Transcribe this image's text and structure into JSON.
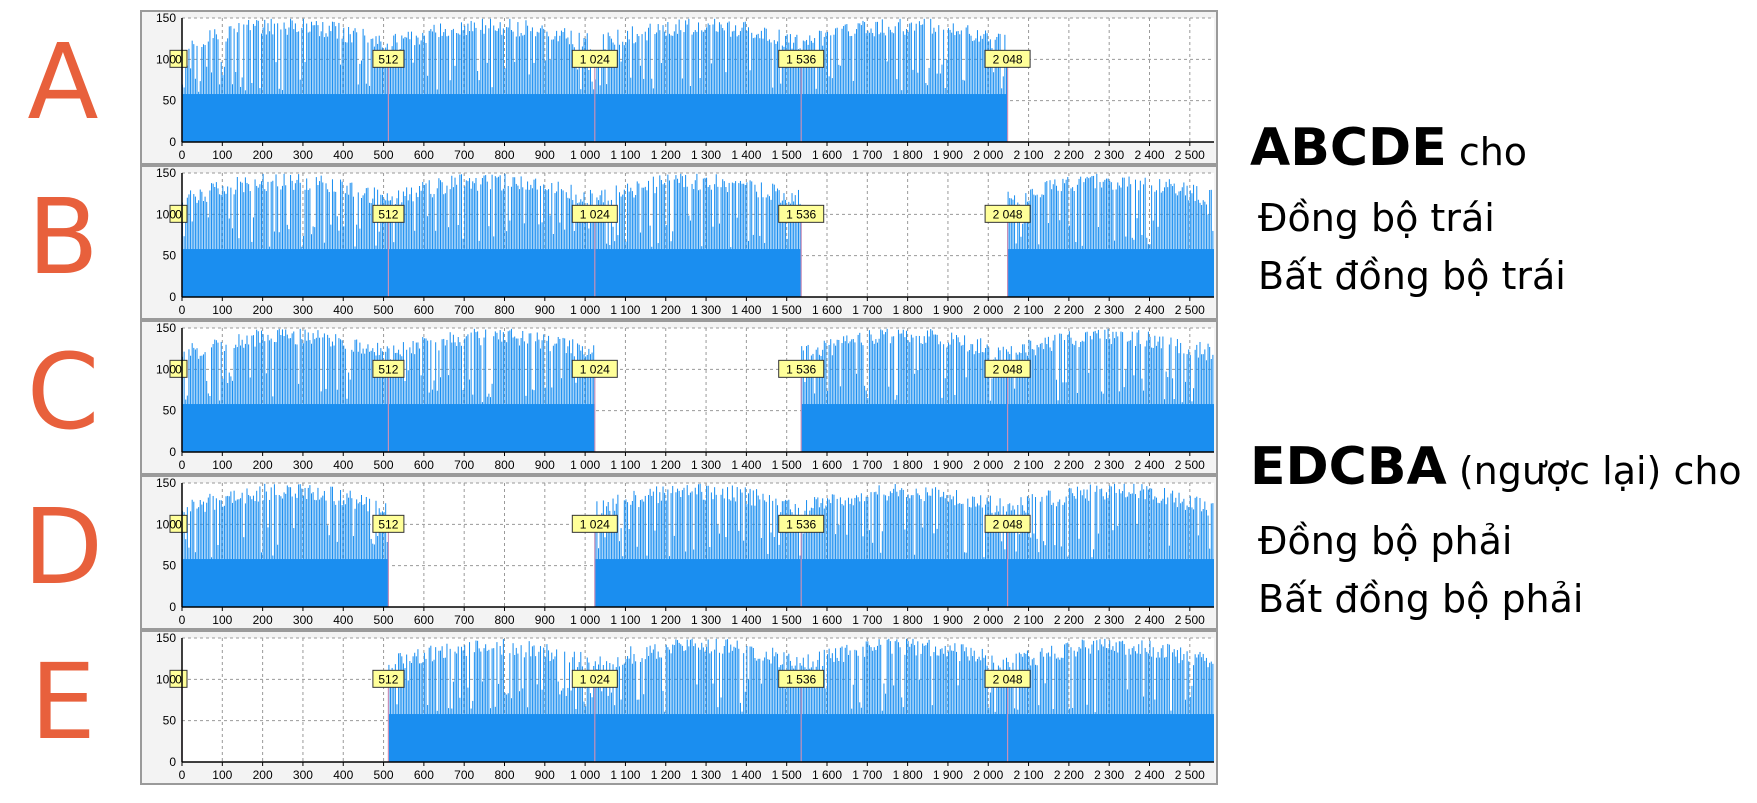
{
  "rows": [
    "A",
    "B",
    "C",
    "D",
    "E"
  ],
  "chart_data": [
    {
      "type": "bar",
      "row": "A",
      "y_ticks": [
        0,
        50,
        100,
        150
      ],
      "ylim": [
        0,
        150
      ],
      "x_ticks": [
        0,
        100,
        200,
        300,
        400,
        500,
        600,
        700,
        800,
        900,
        1000,
        1100,
        1200,
        1300,
        1400,
        1500,
        1600,
        1700,
        1800,
        1900,
        2000,
        2100,
        2200,
        2300,
        2400,
        2500
      ],
      "x_tick_labels": [
        "0",
        "100",
        "200",
        "300",
        "400",
        "500",
        "600",
        "700",
        "800",
        "900",
        "1 000",
        "1 100",
        "1 200",
        "1 300",
        "1 400",
        "1 500",
        "1 600",
        "1 700",
        "1 800",
        "1 900",
        "2 000",
        "2 100",
        "2 200",
        "2 300",
        "2 400",
        "2 500"
      ],
      "xlim": [
        0,
        2560
      ],
      "markers": [
        0,
        512,
        1024,
        1536,
        2048
      ],
      "marker_labels": [
        "0",
        "512",
        "1 024",
        "1 536",
        "2 048"
      ],
      "filled_ranges": [
        [
          0,
          2048
        ]
      ],
      "grid": true,
      "color": "#1a8ef0"
    },
    {
      "type": "bar",
      "row": "B",
      "y_ticks": [
        0,
        50,
        100,
        150
      ],
      "ylim": [
        0,
        150
      ],
      "x_ticks": [
        0,
        100,
        200,
        300,
        400,
        500,
        600,
        700,
        800,
        900,
        1000,
        1100,
        1200,
        1300,
        1400,
        1500,
        1600,
        1700,
        1800,
        1900,
        2000,
        2100,
        2200,
        2300,
        2400,
        2500
      ],
      "x_tick_labels": [
        "0",
        "100",
        "200",
        "300",
        "400",
        "500",
        "600",
        "700",
        "800",
        "900",
        "1 000",
        "1 100",
        "1 200",
        "1 300",
        "1 400",
        "1 500",
        "1 600",
        "1 700",
        "1 800",
        "1 900",
        "2 000",
        "2 100",
        "2 200",
        "2 300",
        "2 400",
        "2 500"
      ],
      "xlim": [
        0,
        2560
      ],
      "markers": [
        0,
        512,
        1024,
        1536,
        2048
      ],
      "marker_labels": [
        "0",
        "512",
        "1 024",
        "1 536",
        "2 048"
      ],
      "filled_ranges": [
        [
          0,
          1536
        ],
        [
          2048,
          2560
        ]
      ],
      "grid": true,
      "color": "#1a8ef0"
    },
    {
      "type": "bar",
      "row": "C",
      "y_ticks": [
        0,
        50,
        100,
        150
      ],
      "ylim": [
        0,
        150
      ],
      "x_ticks": [
        0,
        100,
        200,
        300,
        400,
        500,
        600,
        700,
        800,
        900,
        1000,
        1100,
        1200,
        1300,
        1400,
        1500,
        1600,
        1700,
        1800,
        1900,
        2000,
        2100,
        2200,
        2300,
        2400,
        2500
      ],
      "x_tick_labels": [
        "0",
        "100",
        "200",
        "300",
        "400",
        "500",
        "600",
        "700",
        "800",
        "900",
        "1 000",
        "1 100",
        "1 200",
        "1 300",
        "1 400",
        "1 500",
        "1 600",
        "1 700",
        "1 800",
        "1 900",
        "2 000",
        "2 100",
        "2 200",
        "2 300",
        "2 400",
        "2 500"
      ],
      "xlim": [
        0,
        2560
      ],
      "markers": [
        0,
        512,
        1024,
        1536,
        2048
      ],
      "marker_labels": [
        "0",
        "512",
        "1 024",
        "1 536",
        "2 048"
      ],
      "filled_ranges": [
        [
          0,
          1024
        ],
        [
          1536,
          2560
        ]
      ],
      "grid": true,
      "color": "#1a8ef0"
    },
    {
      "type": "bar",
      "row": "D",
      "y_ticks": [
        0,
        50,
        100,
        150
      ],
      "ylim": [
        0,
        150
      ],
      "x_ticks": [
        0,
        100,
        200,
        300,
        400,
        500,
        600,
        700,
        800,
        900,
        1000,
        1100,
        1200,
        1300,
        1400,
        1500,
        1600,
        1700,
        1800,
        1900,
        2000,
        2100,
        2200,
        2300,
        2400,
        2500
      ],
      "x_tick_labels": [
        "0",
        "100",
        "200",
        "300",
        "400",
        "500",
        "600",
        "700",
        "800",
        "900",
        "1 000",
        "1 100",
        "1 200",
        "1 300",
        "1 400",
        "1 500",
        "1 600",
        "1 700",
        "1 800",
        "1 900",
        "2 000",
        "2 100",
        "2 200",
        "2 300",
        "2 400",
        "2 500"
      ],
      "xlim": [
        0,
        2560
      ],
      "markers": [
        0,
        512,
        1024,
        1536,
        2048
      ],
      "marker_labels": [
        "0",
        "512",
        "1 024",
        "1 536",
        "2 048"
      ],
      "filled_ranges": [
        [
          0,
          512
        ],
        [
          1024,
          2560
        ]
      ],
      "grid": true,
      "color": "#1a8ef0"
    },
    {
      "type": "bar",
      "row": "E",
      "y_ticks": [
        0,
        50,
        100,
        150
      ],
      "ylim": [
        0,
        150
      ],
      "x_ticks": [
        0,
        100,
        200,
        300,
        400,
        500,
        600,
        700,
        800,
        900,
        1000,
        1100,
        1200,
        1300,
        1400,
        1500,
        1600,
        1700,
        1800,
        1900,
        2000,
        2100,
        2200,
        2300,
        2400,
        2500
      ],
      "x_tick_labels": [
        "0",
        "100",
        "200",
        "300",
        "400",
        "500",
        "600",
        "700",
        "800",
        "900",
        "1 000",
        "1 100",
        "1 200",
        "1 300",
        "1 400",
        "1 500",
        "1 600",
        "1 700",
        "1 800",
        "1 900",
        "2 000",
        "2 100",
        "2 200",
        "2 300",
        "2 400",
        "2 500"
      ],
      "xlim": [
        0,
        2560
      ],
      "markers": [
        0,
        512,
        1024,
        1536,
        2048
      ],
      "marker_labels": [
        "0",
        "512",
        "1 024",
        "1 536",
        "2 048"
      ],
      "filled_ranges": [
        [
          512,
          2560
        ]
      ],
      "grid": true,
      "color": "#1a8ef0"
    }
  ],
  "caption_top": {
    "bold": "ABCDE",
    "rest": " cho",
    "lines": [
      "Đồng bộ trái",
      "Bất đồng bộ trái"
    ]
  },
  "caption_bottom": {
    "bold": "EDCBA",
    "rest": " (ngược lại) cho",
    "lines": [
      "Đồng bộ phải",
      "Bất đồng bộ phải"
    ]
  },
  "colors": {
    "letters": "#e8603c",
    "bars": "#1a8ef0",
    "marker_box": "#ffff99"
  }
}
